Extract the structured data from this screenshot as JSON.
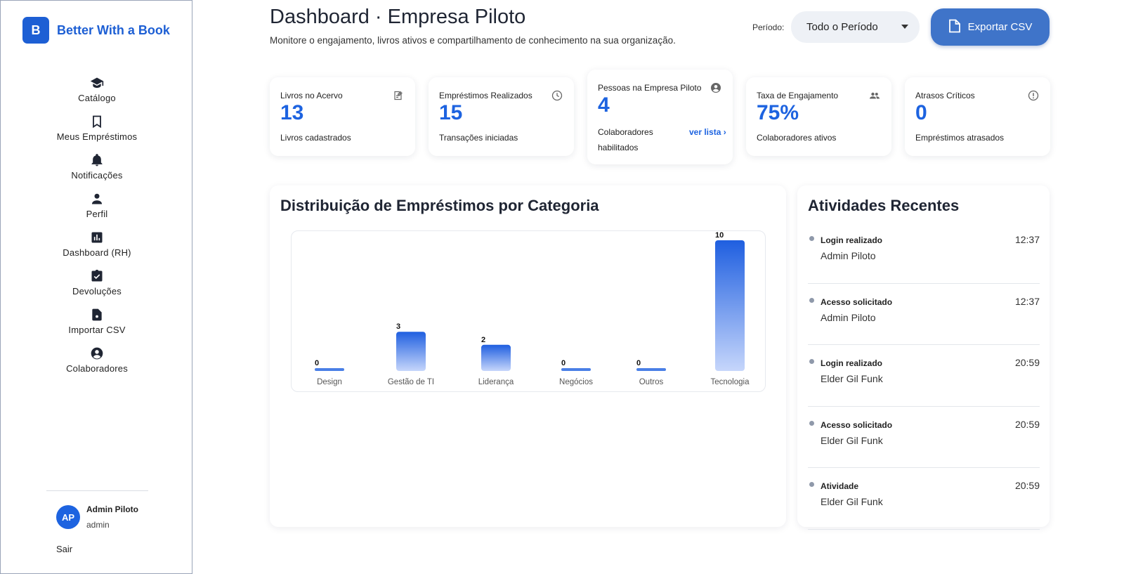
{
  "brand": {
    "logo_letter": "B",
    "name": "Better With a Book",
    "accent": "#1d5fd4"
  },
  "sidebar": {
    "items": [
      {
        "label": "Catálogo",
        "icon": "graduation-cap-icon"
      },
      {
        "label": "Meus Empréstimos",
        "icon": "bookmark-icon"
      },
      {
        "label": "Notificações",
        "icon": "bell-icon"
      },
      {
        "label": "Perfil",
        "icon": "person-icon"
      },
      {
        "label": "Dashboard (RH)",
        "icon": "bar-chart-icon"
      },
      {
        "label": "Devoluções",
        "icon": "clipboard-check-icon"
      },
      {
        "label": "Importar CSV",
        "icon": "file-upload-icon"
      },
      {
        "label": "Colaboradores",
        "icon": "account-circle-icon"
      }
    ],
    "user": {
      "initials": "AP",
      "name": "Admin Piloto",
      "role": "admin"
    },
    "logout_label": "Sair"
  },
  "header": {
    "title": "Dashboard · Empresa Piloto",
    "subtitle": "Monitore o engajamento, livros ativos e compartilhamento de conhecimento na sua organização.",
    "period_label": "Período:",
    "period_value": "Todo o Período",
    "export_label": "Exportar CSV"
  },
  "stats": [
    {
      "title": "Livros no Acervo",
      "value": "13",
      "sub": "Livros cadastrados",
      "icon": "edit-note-icon"
    },
    {
      "title": "Empréstimos Realizados",
      "value": "15",
      "sub": "Transações iniciadas",
      "icon": "clock-icon"
    },
    {
      "title": "Pessoas na Empresa Piloto",
      "value": "4",
      "sub": "Colaboradores habilitados",
      "link": "ver lista ›",
      "icon": "account-circle-icon"
    },
    {
      "title": "Taxa de Engajamento",
      "value": "75%",
      "sub": "Colaboradores ativos",
      "icon": "group-icon"
    },
    {
      "title": "Atrasos Críticos",
      "value": "0",
      "sub": "Empréstimos atrasados",
      "icon": "alert-circle-icon"
    }
  ],
  "chart_panel": {
    "title": "Distribuição de Empréstimos por Categoria"
  },
  "chart_data": {
    "type": "bar",
    "categories": [
      "Design",
      "Gestão de TI",
      "Liderança",
      "Negócios",
      "Outros",
      "Tecnologia"
    ],
    "values": [
      0,
      3,
      2,
      0,
      0,
      10
    ],
    "ylim": [
      0,
      10
    ],
    "grid": false,
    "bar_color": "#2563eb"
  },
  "activity": {
    "title": "Atividades Recentes",
    "items": [
      {
        "title": "Login realizado",
        "user": "Admin Piloto",
        "time": "12:37"
      },
      {
        "title": "Acesso solicitado",
        "user": "Admin Piloto",
        "time": "12:37"
      },
      {
        "title": "Login realizado",
        "user": "Elder Gil Funk",
        "time": "20:59"
      },
      {
        "title": "Acesso solicitado",
        "user": "Elder Gil Funk",
        "time": "20:59"
      },
      {
        "title": "Atividade",
        "user": "Elder Gil Funk",
        "time": "20:59"
      }
    ]
  }
}
